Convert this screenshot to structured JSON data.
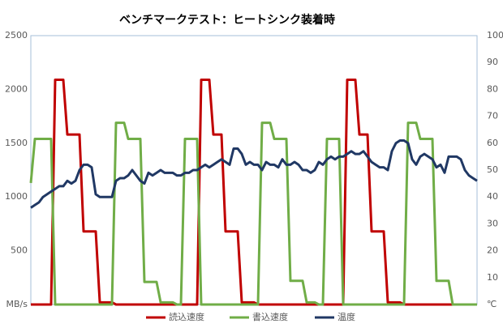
{
  "chart_data": {
    "type": "line",
    "title": "ベンチマークテスト：ヒートシンク装着時",
    "categories": [
      null,
      null,
      null,
      null,
      null,
      null,
      null,
      null,
      null,
      null,
      null,
      null,
      null,
      null,
      null,
      null,
      null,
      null,
      null,
      null,
      null,
      null,
      null,
      null,
      null,
      null,
      null,
      null,
      null,
      null,
      null,
      null,
      null,
      null,
      null,
      null,
      null,
      null,
      null,
      null,
      null,
      null,
      null,
      null,
      null,
      null,
      null,
      null,
      null,
      null,
      null,
      null,
      null,
      null,
      null,
      null,
      null,
      null,
      null,
      null,
      null,
      null,
      null,
      null,
      null,
      null,
      null,
      null,
      null,
      null,
      null,
      null,
      null,
      null,
      null,
      null,
      null,
      null,
      null,
      null,
      null,
      null,
      null,
      null,
      null,
      null,
      null,
      null,
      null,
      null,
      null,
      null,
      null,
      null,
      null,
      null,
      null,
      null,
      null,
      null,
      null,
      null,
      null,
      null,
      null,
      null,
      null,
      null,
      null,
      null,
      null
    ],
    "series": [
      {
        "name": "読込速度",
        "color": "#c00000",
        "values": [
          0,
          0,
          0,
          0,
          0,
          0,
          2090,
          2090,
          2090,
          1580,
          1580,
          1580,
          1580,
          680,
          680,
          680,
          680,
          20,
          20,
          20,
          20,
          0,
          0,
          0,
          0,
          0,
          0,
          0,
          0,
          0,
          0,
          0,
          0,
          0,
          0,
          0,
          0,
          0,
          0,
          0,
          0,
          0,
          2090,
          2090,
          2090,
          1580,
          1580,
          1580,
          680,
          680,
          680,
          680,
          20,
          20,
          20,
          20,
          0,
          0,
          0,
          0,
          0,
          0,
          0,
          0,
          0,
          0,
          0,
          0,
          0,
          0,
          0,
          0,
          0,
          0,
          0,
          0,
          0,
          0,
          2090,
          2090,
          2090,
          1580,
          1580,
          1580,
          680,
          680,
          680,
          680,
          20,
          20,
          20,
          20,
          0,
          0,
          0,
          0,
          0,
          0,
          0,
          0,
          0,
          0,
          0,
          0,
          0,
          0,
          0,
          0,
          0,
          0,
          0
        ]
      },
      {
        "name": "書込速度",
        "color": "#70ad47",
        "values": [
          1130,
          1540,
          1540,
          1540,
          1540,
          1540,
          0,
          0,
          0,
          0,
          0,
          0,
          0,
          0,
          0,
          0,
          0,
          0,
          0,
          0,
          0,
          1690,
          1690,
          1690,
          1540,
          1540,
          1540,
          1540,
          210,
          210,
          210,
          210,
          20,
          20,
          20,
          20,
          0,
          0,
          1540,
          1540,
          1540,
          1540,
          0,
          0,
          0,
          0,
          0,
          0,
          0,
          0,
          0,
          0,
          0,
          0,
          0,
          0,
          0,
          1690,
          1690,
          1690,
          1540,
          1540,
          1540,
          1540,
          220,
          220,
          220,
          220,
          20,
          20,
          20,
          0,
          0,
          1540,
          1540,
          1540,
          1540,
          0,
          0,
          0,
          0,
          0,
          0,
          0,
          0,
          0,
          0,
          0,
          0,
          0,
          0,
          0,
          0,
          1690,
          1690,
          1690,
          1540,
          1540,
          1540,
          1540,
          220,
          220,
          220,
          220,
          0,
          0,
          0,
          0,
          0,
          0,
          0
        ]
      },
      {
        "name": "温度",
        "color": "#203864",
        "axis": "y2",
        "values": [
          36,
          37,
          38,
          40,
          41,
          42,
          43,
          44,
          44,
          46,
          45,
          46,
          50,
          52,
          52,
          51,
          41,
          40,
          40,
          40,
          40,
          46,
          47,
          47,
          48,
          50,
          48,
          46,
          45,
          49,
          48,
          49,
          50,
          49,
          49,
          49,
          48,
          48,
          49,
          49,
          50,
          50,
          51,
          52,
          51,
          52,
          53,
          54,
          53,
          52,
          58,
          58,
          56,
          52,
          53,
          52,
          52,
          50,
          53,
          52,
          52,
          51,
          54,
          52,
          52,
          53,
          52,
          50,
          50,
          49,
          50,
          53,
          52,
          54,
          55,
          54,
          55,
          55,
          56,
          57,
          56,
          56,
          57,
          55,
          53,
          52,
          51,
          51,
          50,
          57,
          60,
          61,
          61,
          60,
          54,
          52,
          55,
          56,
          55,
          54,
          51,
          52,
          49,
          55,
          55,
          55,
          54,
          50,
          48,
          47,
          46
        ]
      }
    ],
    "ylim": [
      0,
      2500
    ],
    "yticks": [
      {
        "value": 0,
        "label": "MB/s"
      },
      500,
      1000,
      1500,
      2000,
      2500
    ],
    "y2lim": [
      0,
      100
    ],
    "y2ticks": [
      {
        "value": 0,
        "label": "℃"
      },
      10,
      20,
      30,
      40,
      50,
      60,
      70,
      80,
      90,
      100
    ],
    "grid": false,
    "legend": "bottom"
  }
}
